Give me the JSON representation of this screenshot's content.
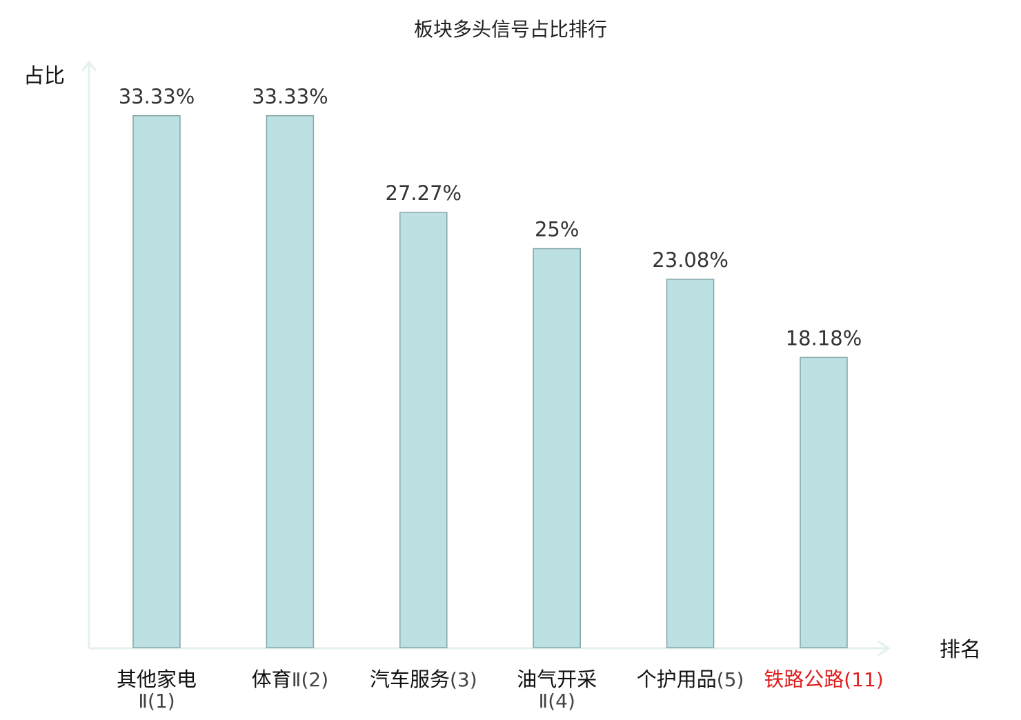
{
  "chart_data": {
    "type": "bar",
    "title": "板块多头信号占比排行",
    "ylabel": "占比",
    "xlabel": "排名",
    "ylim": [
      0,
      36
    ],
    "categories": [
      {
        "name": "其他家电",
        "rank": "Ⅱ(1)"
      },
      {
        "name": "体育",
        "rank": "Ⅱ(2)"
      },
      {
        "name": "汽车服务",
        "rank": "(3)"
      },
      {
        "name": "油气开采",
        "rank": "Ⅱ(4)"
      },
      {
        "name": "个护用品",
        "rank": "(5)"
      },
      {
        "name": "铁路公路",
        "rank": "(11)",
        "highlight": true
      }
    ],
    "values": [
      33.33,
      33.33,
      27.27,
      25,
      23.08,
      18.18
    ],
    "value_labels": [
      "33.33%",
      "33.33%",
      "27.27%",
      "25%",
      "23.08%",
      "18.18%"
    ],
    "grid": false,
    "legend": "none"
  },
  "colors": {
    "bar_fill": "#bde0e2",
    "bar_stroke": "#86a6a8",
    "axis": "#e3f1ee",
    "text": "#333333",
    "highlight": "#e02020"
  }
}
